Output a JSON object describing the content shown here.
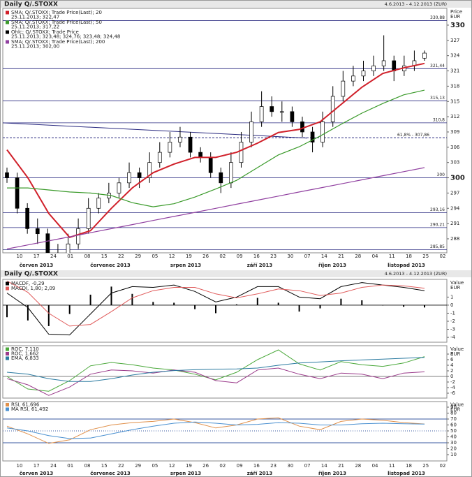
{
  "header": {
    "title": "Daily Q/.STOXX",
    "range": "4.6.2013 - 4.12.2013 (ZUR)"
  },
  "chart_data": [
    {
      "type": "candlestick",
      "y_unit": [
        "Price",
        "EUR"
      ],
      "ylim": [
        285.25,
        333.29
      ],
      "yticks": [
        288,
        291,
        294,
        297,
        300,
        303,
        306,
        309,
        312,
        315,
        318,
        321,
        324,
        327,
        330
      ],
      "emphasized_ticks": [
        300,
        330
      ],
      "x_labels": [
        "10",
        "17",
        "24",
        "01",
        "08",
        "15",
        "22",
        "29",
        "05",
        "12",
        "19",
        "26",
        "02",
        "09",
        "16",
        "23",
        "30",
        "07",
        "14",
        "21",
        "28",
        "04",
        "11",
        "18",
        "25",
        "02"
      ],
      "months": [
        "červen 2013",
        "červenec 2013",
        "srpen 2013",
        "září 2013",
        "říjen 2013",
        "listopad 2013"
      ],
      "candles": {
        "name": "Ohlc; Q/.STOXX; Trade Price",
        "last": "25.11.2013; 323,48; 324,76; 323,48; 324,48",
        "color": "#000000",
        "open": [
          301,
          300,
          294,
          290,
          289,
          284,
          285,
          287,
          290,
          294,
          296,
          297,
          299,
          301,
          300,
          303,
          305,
          307,
          308,
          305,
          304,
          301,
          299,
          303,
          307,
          311,
          314,
          313,
          313,
          311,
          309,
          307,
          311,
          316,
          319,
          320,
          321,
          322,
          323,
          321,
          322,
          323.5
        ],
        "high": [
          302,
          301,
          295,
          292,
          290,
          287,
          289,
          292,
          296,
          297,
          299,
          300,
          303,
          302,
          305,
          307,
          309,
          310,
          309,
          306,
          305,
          302,
          305,
          309,
          313,
          317,
          316,
          315,
          314,
          312,
          310,
          313,
          318,
          321,
          322,
          323,
          324,
          328,
          324,
          324,
          325,
          325
        ],
        "low": [
          299,
          293,
          289,
          287,
          283,
          282,
          284,
          286,
          289,
          293,
          295,
          296,
          298,
          298,
          299,
          302,
          304,
          306,
          304,
          303,
          300,
          297,
          298,
          302,
          306,
          310,
          312,
          311,
          310,
          308,
          305,
          306,
          310,
          315,
          318,
          319,
          320,
          321,
          319,
          320,
          321,
          323
        ],
        "close": [
          300,
          294,
          290,
          289,
          284,
          285,
          287,
          290,
          294,
          296,
          297,
          299,
          301,
          300,
          303,
          305,
          307,
          308,
          305,
          304,
          301,
          299,
          303,
          307,
          311,
          314,
          313,
          313,
          311,
          309,
          307,
          311,
          316,
          319,
          320,
          321,
          322,
          323,
          321,
          322,
          323,
          324.5
        ]
      },
      "series": [
        {
          "name": "SMA; Q/.STOXX; Trade Price(Last); 20",
          "last": "25.11.2013; 322,47",
          "color": "#d0202a",
          "values": [
            305.5,
            300,
            293,
            288.3,
            289.6,
            294,
            298,
            301,
            302.7,
            304,
            304,
            305,
            306.8,
            308.9,
            309.5,
            311,
            314.4,
            317.8,
            320.5,
            321.6,
            322.47
          ]
        },
        {
          "name": "SMA; Q/.STOXX; Trade Price(Last); 50",
          "last": "25.11.2013; 317,22",
          "color": "#3a9a2a",
          "values": [
            298,
            298,
            297.6,
            297.2,
            297,
            296.5,
            295.1,
            294.3,
            294.9,
            296.2,
            297.8,
            299.5,
            302,
            304.5,
            306.1,
            308.2,
            310.5,
            312.7,
            314.6,
            316.3,
            317.22
          ]
        },
        {
          "name": "SMA; Q/.STOXX; Trade Price(Last); 200",
          "last": "25.11.2013; 302,00",
          "color": "#9040a0",
          "values": [
            286,
            286.8,
            287.6,
            288.4,
            289.2,
            290,
            290.8,
            291.6,
            292.4,
            293.2,
            294,
            294.8,
            295.6,
            296.4,
            297.2,
            298,
            298.8,
            299.6,
            300.4,
            301.2,
            302
          ]
        }
      ],
      "trendline": {
        "color": "#2a2a80",
        "values": [
          310.8,
          307.8
        ]
      },
      "levels": [
        {
          "value": 330.88,
          "label": "330,88"
        },
        {
          "value": 321.44,
          "label": "321,44"
        },
        {
          "value": 315.13,
          "label": "315,13"
        },
        {
          "value": 310.8,
          "label": "310,8"
        },
        {
          "value": 300,
          "label": "300"
        },
        {
          "value": 293.16,
          "label": "293,16"
        },
        {
          "value": 290.21,
          "label": "290,21"
        },
        {
          "value": 285.85,
          "label": "285,85"
        }
      ],
      "fib_level": {
        "value": 307.86,
        "label": "61,8% - 307,86"
      },
      "level_color": "#2a2a80"
    },
    {
      "type": "macd",
      "y_unit": [
        "Value",
        "EUR"
      ],
      "ylim": [
        -4.6,
        3.2
      ],
      "yticks": [
        1,
        0,
        -1,
        -2,
        -3,
        -4
      ],
      "histogram": {
        "name": "MACDF, -0,29",
        "color": "#000000",
        "values": [
          -1.5,
          -1.9,
          -2.6,
          -1.1,
          1.3,
          2.3,
          1.4,
          0.4,
          0.3,
          -0.5,
          -1.0,
          0.1,
          0.9,
          0.3,
          -0.8,
          -0.4,
          0.8,
          0.6,
          0,
          -0.2,
          -0.29
        ]
      },
      "lines": {
        "name": "MACDI, 1,80; 2,09",
        "series": [
          {
            "color": "#000000",
            "values": [
              1.5,
              -0.3,
              -3.6,
              -3.7,
              -1.1,
              1.5,
              2.3,
              2.2,
              2.5,
              1.7,
              0.4,
              1.0,
              2.3,
              2.3,
              1.0,
              0.8,
              2.3,
              2.8,
              2.5,
              2.2,
              1.8
            ]
          },
          {
            "color": "#e05a5a",
            "values": [
              3.0,
              1.6,
              -1.0,
              -2.6,
              -2.4,
              -0.8,
              0.9,
              1.8,
              2.2,
              2.2,
              1.4,
              0.9,
              1.4,
              2.0,
              1.8,
              1.2,
              1.5,
              2.2,
              2.5,
              2.4,
              2.09
            ]
          }
        ]
      }
    },
    {
      "type": "line",
      "y_unit": [
        "Value",
        "EUR"
      ],
      "ylim": [
        -7.75,
        11
      ],
      "yticks": [
        8,
        6,
        4,
        2,
        0,
        -2,
        -4,
        -6
      ],
      "series": [
        {
          "name": "ROC, 7,110",
          "color": "#4aa83a",
          "values": [
            0,
            -4.5,
            -5.3,
            -1.5,
            3.8,
            5,
            4.2,
            3,
            2.3,
            0.8,
            -1.2,
            1.5,
            6,
            9.5,
            4.5,
            2.3,
            5.3,
            4.2,
            3.6,
            4.8,
            7.11
          ]
        },
        {
          "name": "ROC, 1,662",
          "color": "#9a3a8a",
          "values": [
            -0.8,
            -3,
            -6.8,
            -3.8,
            0.8,
            2.3,
            2,
            1.2,
            2.3,
            1.5,
            -1.5,
            -2.3,
            2.3,
            3,
            0.8,
            -0.8,
            1.2,
            0.8,
            -0.8,
            1.2,
            1.662
          ]
        },
        {
          "name": "EMA, 6,833",
          "color": "#2a7aa0",
          "values": [
            1.5,
            0.8,
            -0.8,
            -1.8,
            -1.8,
            -0.8,
            0.5,
            1.5,
            2.1,
            2.4,
            2.6,
            2.7,
            3,
            4,
            4.8,
            5.2,
            5.6,
            5.9,
            6.2,
            6.5,
            6.833
          ]
        }
      ]
    },
    {
      "type": "line",
      "y_unit": [
        "Value",
        "EUR"
      ],
      "ylim": [
        0,
        100
      ],
      "yticks": [
        90,
        80,
        70,
        60,
        50,
        40,
        30,
        20,
        10
      ],
      "levels": [
        70,
        50,
        30
      ],
      "level_color": "#3a5aa0",
      "series": [
        {
          "name": "RSI, 61,696",
          "color": "#e0904a",
          "values": [
            58,
            45,
            29,
            35,
            52,
            60,
            64,
            66,
            70,
            64,
            55,
            60,
            70,
            72,
            58,
            52,
            66,
            70,
            68,
            64,
            61.696
          ]
        },
        {
          "name": "MA RSI, 61,492",
          "color": "#4a90d0",
          "values": [
            55,
            50,
            42,
            37,
            38,
            45,
            52,
            58,
            63,
            65,
            63,
            60,
            61,
            64,
            63,
            60,
            60,
            62,
            63,
            62,
            61.492
          ]
        }
      ]
    }
  ]
}
